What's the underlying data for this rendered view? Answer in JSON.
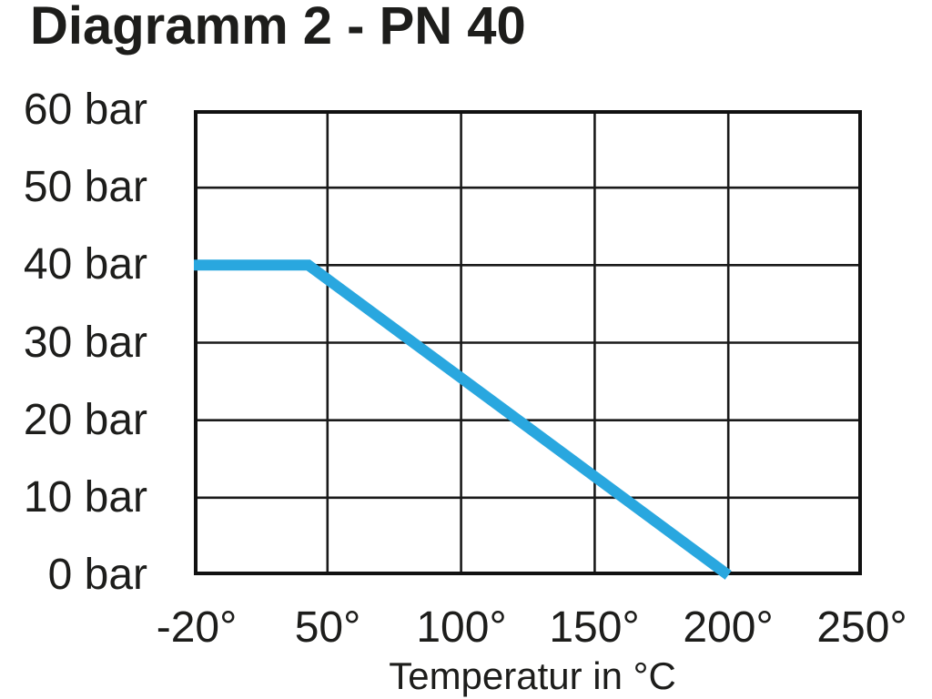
{
  "title": "Diagramm 2 - PN 40",
  "colors": {
    "line": "#29a7df",
    "grid": "#1a1a1a",
    "border": "#111111",
    "text": "#1d1d1b",
    "background": "#ffffff"
  },
  "chart_data": {
    "type": "line",
    "title": "Diagramm 2 - PN 40",
    "xlabel": "Temperatur in °C",
    "ylabel": "bar",
    "x_tick_labels": [
      "-20°",
      "50°",
      "100°",
      "150°",
      "200°",
      "250°"
    ],
    "x_tick_values": [
      -20,
      50,
      100,
      150,
      200,
      250
    ],
    "y_tick_labels": [
      "60 bar",
      "50 bar",
      "40 bar",
      "30 bar",
      "20 bar",
      "10 bar",
      "0 bar"
    ],
    "y_tick_values": [
      60,
      50,
      40,
      30,
      20,
      10,
      0
    ],
    "ylim": [
      0,
      60
    ],
    "grid": true,
    "legend": "none",
    "layout_note": "x ticks are equally spaced even though -20 to 50 is a wider numeric interval",
    "series": [
      {
        "name": "PN 40 pressure-temperature limit",
        "color": "#29a7df",
        "points": [
          [
            -20,
            40
          ],
          [
            40,
            40
          ],
          [
            200,
            0
          ]
        ]
      }
    ]
  }
}
